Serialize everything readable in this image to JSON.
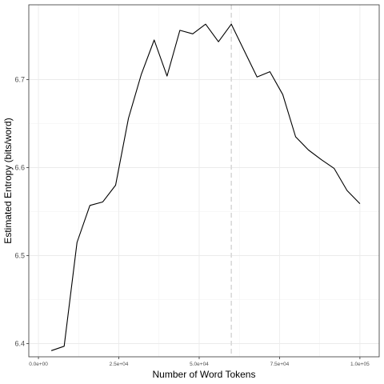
{
  "chart_data": {
    "type": "line",
    "xlabel": "Number of Word Tokens",
    "ylabel": "Estimated Entropy (bits/word)",
    "xlim": [
      -3000,
      106000
    ],
    "ylim": [
      6.385,
      6.785
    ],
    "x_ticks": [
      0,
      25000,
      50000,
      75000,
      100000
    ],
    "x_tick_labels": [
      "0.0e+00",
      "2.5e+04",
      "5.0e+04",
      "7.5e+04",
      "1.0e+05"
    ],
    "y_ticks": [
      6.4,
      6.5,
      6.6,
      6.7
    ],
    "y_tick_labels": [
      "6.4",
      "6.5",
      "6.6",
      "6.7"
    ],
    "grid": true,
    "vline": {
      "x": 60000,
      "style": "dashed",
      "color": "#d9d9d9"
    },
    "series": [
      {
        "color": "#000000",
        "x": [
          4000,
          8000,
          12000,
          16000,
          20000,
          24000,
          28000,
          32000,
          36000,
          40000,
          44000,
          48000,
          52000,
          56000,
          60000,
          64000,
          68000,
          72000,
          76000,
          80000,
          84000,
          88000,
          92000,
          96000,
          100000
        ],
        "y": [
          6.392,
          6.397,
          6.515,
          6.557,
          6.561,
          6.58,
          6.656,
          6.706,
          6.745,
          6.704,
          6.756,
          6.752,
          6.763,
          6.743,
          6.763,
          6.733,
          6.703,
          6.709,
          6.683,
          6.635,
          6.62,
          6.609,
          6.599,
          6.574,
          6.559
        ]
      }
    ]
  }
}
